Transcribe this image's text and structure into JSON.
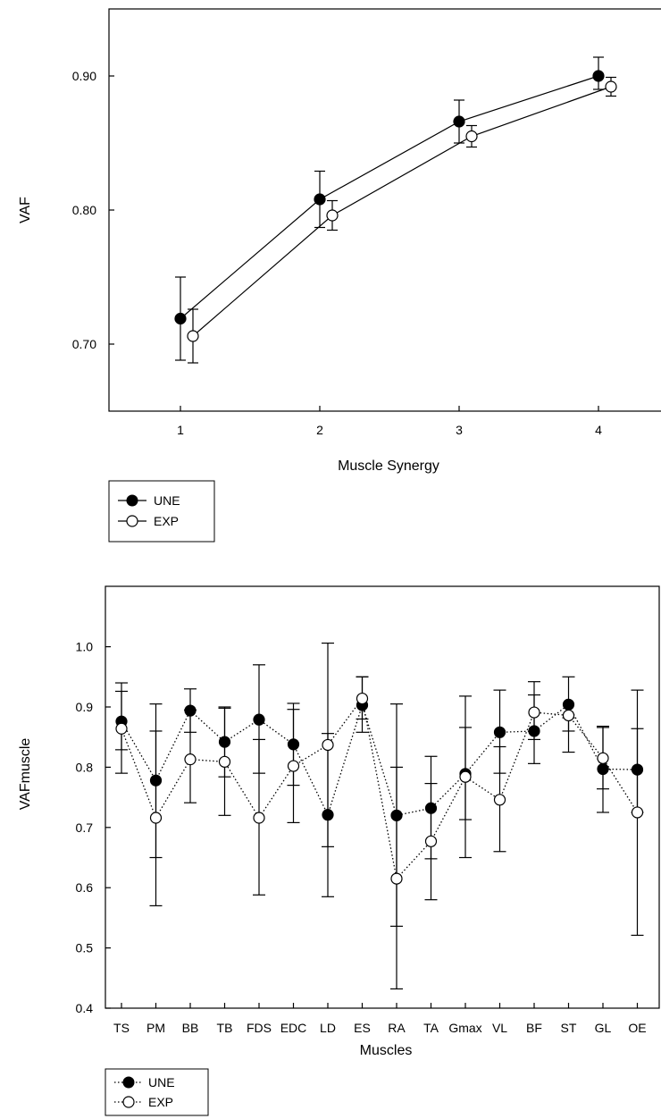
{
  "chart_data": [
    {
      "type": "line",
      "xlabel": "Muscle Synergy",
      "ylabel": "VAF",
      "x": [
        1,
        2,
        3,
        4
      ],
      "xticks": [
        "1",
        "2",
        "3",
        "4"
      ],
      "xlim": [
        0.5,
        4.5
      ],
      "ylim": [
        0.65,
        0.95
      ],
      "yticks": [
        "0.70",
        "0.80",
        "0.90"
      ],
      "series": [
        {
          "name": "UNE",
          "marker": "filled",
          "line": "solid",
          "values": [
            0.719,
            0.808,
            0.866,
            0.9
          ],
          "err_low": [
            0.688,
            0.787,
            0.85,
            0.89
          ],
          "err_high": [
            0.75,
            0.829,
            0.882,
            0.914
          ]
        },
        {
          "name": "EXP",
          "marker": "open",
          "line": "solid",
          "values": [
            0.706,
            0.796,
            0.855,
            0.892
          ],
          "err_low": [
            0.686,
            0.785,
            0.847,
            0.885
          ],
          "err_high": [
            0.726,
            0.807,
            0.863,
            0.899
          ]
        }
      ],
      "legend": "bottom-left, outside"
    },
    {
      "type": "line",
      "xlabel": "Muscles",
      "ylabel": "VAFmuscle",
      "categories": [
        "TS",
        "PM",
        "BB",
        "TB",
        "FDS",
        "EDC",
        "LD",
        "ES",
        "RA",
        "TA",
        "Gmax",
        "VL",
        "BF",
        "ST",
        "GL",
        "OE"
      ],
      "ylim": [
        0.4,
        1.0
      ],
      "yticks": [
        "0.4",
        "0.5",
        "0.6",
        "0.7",
        "0.8",
        "0.9",
        "1.0"
      ],
      "series": [
        {
          "name": "UNE",
          "marker": "filled",
          "line": "dotted",
          "values": [
            0.876,
            0.778,
            0.894,
            0.842,
            0.879,
            0.838,
            0.721,
            0.903,
            0.72,
            0.732,
            0.789,
            0.858,
            0.86,
            0.904,
            0.797,
            0.796
          ],
          "err_low": [
            0.829,
            0.65,
            0.858,
            0.784,
            0.79,
            0.77,
            0.585,
            0.858,
            0.536,
            0.648,
            0.713,
            0.79,
            0.806,
            0.86,
            0.725,
            0.521
          ],
          "err_high": [
            0.926,
            0.905,
            0.93,
            0.9,
            0.97,
            0.906,
            1.006,
            0.95,
            0.905,
            0.818,
            0.866,
            0.928,
            0.92,
            0.95,
            0.868,
            0.864
          ]
        },
        {
          "name": "EXP",
          "marker": "open",
          "line": "dotted",
          "values": [
            0.864,
            0.716,
            0.813,
            0.809,
            0.716,
            0.802,
            0.837,
            0.914,
            0.615,
            0.677,
            0.784,
            0.746,
            0.891,
            0.886,
            0.815,
            0.725
          ],
          "err_low": [
            0.79,
            0.57,
            0.741,
            0.72,
            0.588,
            0.708,
            0.668,
            0.88,
            0.432,
            0.58,
            0.65,
            0.66,
            0.846,
            0.825,
            0.764,
            0.725
          ],
          "err_high": [
            0.94,
            0.86,
            0.895,
            0.898,
            0.846,
            0.896,
            0.856,
            0.95,
            0.8,
            0.773,
            0.918,
            0.834,
            0.942,
            0.882,
            0.866,
            0.928
          ]
        }
      ],
      "legend": "bottom-left, outside"
    }
  ]
}
